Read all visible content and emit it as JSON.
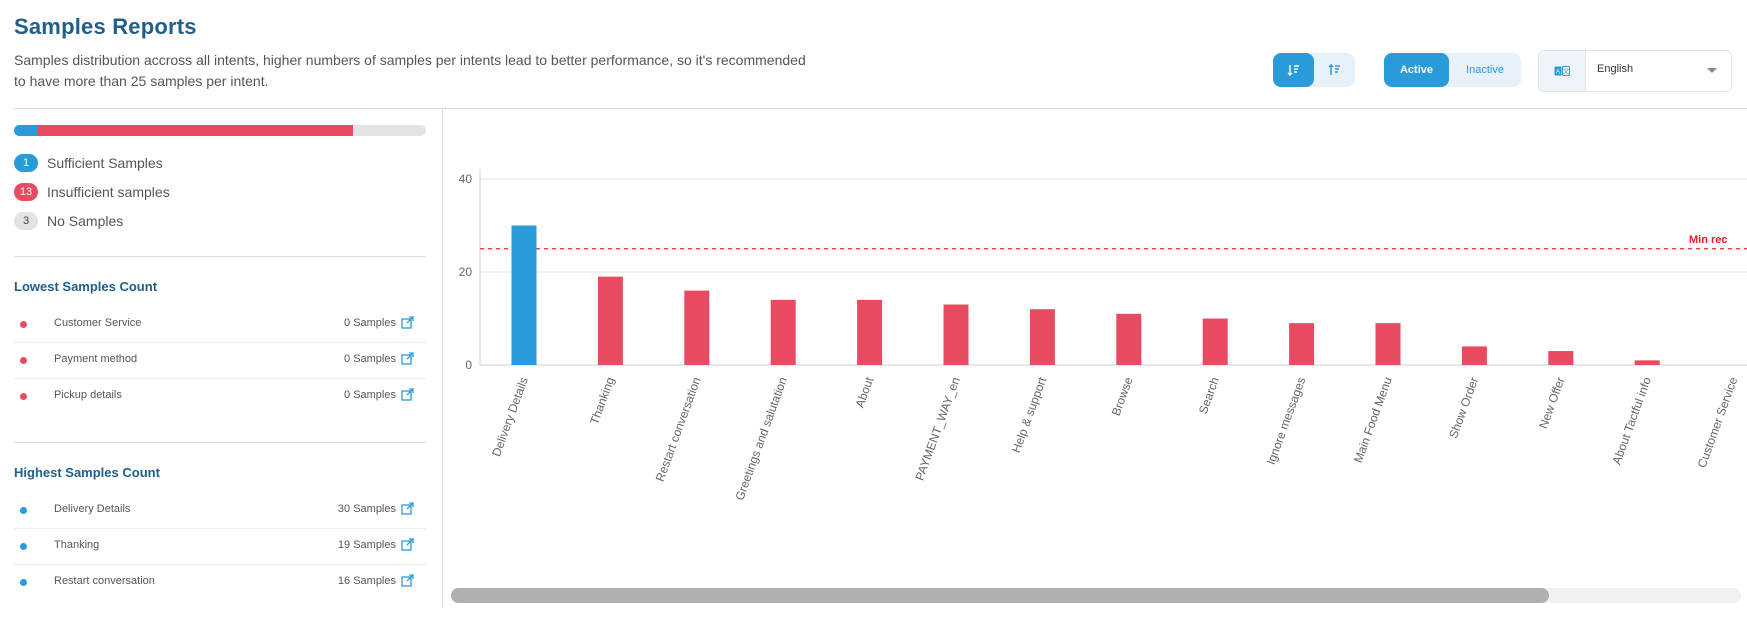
{
  "header": {
    "title": "Samples Reports",
    "subtitle_line1": "Samples distribution accross all intents, higher numbers of samples per intents lead to better performance, so it's recommended",
    "subtitle_line2": "to have more than 25 samples per intent."
  },
  "controls": {
    "sort_desc_icon": "sort-descending-icon",
    "sort_asc_icon": "sort-ascending-icon",
    "active_label": "Active",
    "inactive_label": "Inactive",
    "language_icon": "translate-icon",
    "language_value": "English"
  },
  "summary": {
    "progress_sufficient_fraction": 0.0588,
    "progress_insufficient_fraction": 0.7647,
    "sufficient_count": "1",
    "sufficient_label": "Sufficient Samples",
    "insufficient_count": "13",
    "insufficient_label": "Insufficient samples",
    "none_count": "3",
    "none_label": "No Samples"
  },
  "lowest": {
    "title": "Lowest Samples Count",
    "items": [
      {
        "name": "Customer Service",
        "count": "0 Samples"
      },
      {
        "name": "Payment method",
        "count": "0 Samples"
      },
      {
        "name": "Pickup details",
        "count": "0 Samples"
      }
    ]
  },
  "highest": {
    "title": "Highest Samples Count",
    "items": [
      {
        "name": "Delivery Details",
        "count": "30 Samples"
      },
      {
        "name": "Thanking",
        "count": "19 Samples"
      },
      {
        "name": "Restart conversation",
        "count": "16 Samples"
      }
    ]
  },
  "colors": {
    "sufficient": "#2a9bd9",
    "insufficient": "#e84a62",
    "none": "#e3e3e3",
    "threshold": "#e8202a"
  },
  "chart_data": {
    "type": "bar",
    "categories": [
      "Delivery Details",
      "Thanking",
      "Restart conversation",
      "Greetings and salutation",
      "About",
      "PAYMENT_WAY_en",
      "Help & support",
      "Browse",
      "Search",
      "Ignore messages",
      "Main Food Menu",
      "Show Order",
      "New Offer",
      "About Tactful info",
      "Customer Service"
    ],
    "values": [
      30,
      19,
      16,
      14,
      14,
      13,
      12,
      11,
      10,
      9,
      9,
      4,
      3,
      1,
      0
    ],
    "ylim": [
      0,
      40
    ],
    "yticks": [
      "0",
      "20",
      "40"
    ],
    "threshold_value": 25,
    "threshold_label": "Min rec",
    "grid": true
  }
}
